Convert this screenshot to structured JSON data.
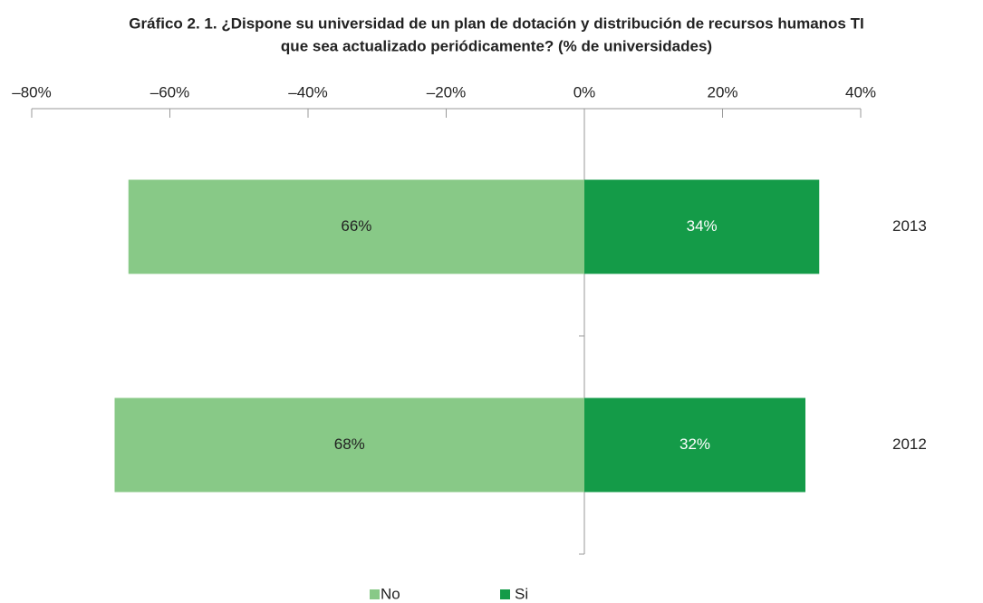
{
  "chart_data": {
    "type": "diverging_bar",
    "title": [
      "Gráfico 2. 1.   ¿Dispone su universidad de un plan de dotación y distribución de recursos humanos TI",
      "que sea actualizado periódicamente? (% de universidades)"
    ],
    "categories": [
      "2013",
      "2012"
    ],
    "series": [
      {
        "name": "No",
        "color": "#88c987",
        "values": [
          -66,
          -68
        ],
        "value_labels": [
          "66%",
          "68%"
        ],
        "label_color": "#222"
      },
      {
        "name": "Si",
        "color": "#149b48",
        "values": [
          34,
          32
        ],
        "value_labels": [
          "34%",
          "32%"
        ],
        "label_color": "#ffffff"
      }
    ],
    "xlim": [
      -80,
      40
    ],
    "xticks": [
      {
        "value": -80,
        "label": "–80%"
      },
      {
        "value": -60,
        "label": "–60%"
      },
      {
        "value": -40,
        "label": "–40%"
      },
      {
        "value": -20,
        "label": "–20%"
      },
      {
        "value": 0,
        "label": "0%"
      },
      {
        "value": 20,
        "label": "20%"
      },
      {
        "value": 40,
        "label": "40%"
      }
    ],
    "legend": "bottom"
  }
}
